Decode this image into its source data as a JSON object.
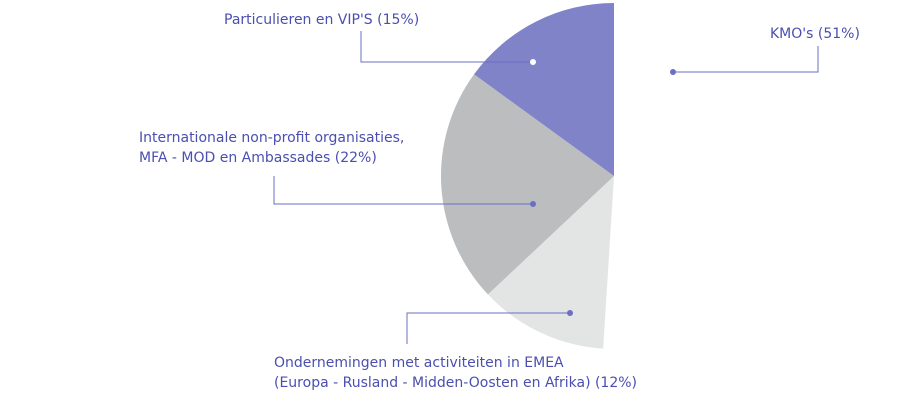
{
  "chart_data": {
    "type": "pie",
    "title": "",
    "slices": [
      {
        "key": "kmo",
        "label_lines": [
          "KMO's (51%)"
        ],
        "value": 51,
        "color": "#ffffff",
        "label_color": "#4a4fb0"
      },
      {
        "key": "emea",
        "label_lines": [
          "Ondernemingen met activiteiten in EMEA",
          "(Europa - Rusland - Midden-Oosten en Afrika) (12%)"
        ],
        "value": 12,
        "color": "#e3e4e4",
        "label_color": "#4a4fb0"
      },
      {
        "key": "ngo",
        "label_lines": [
          "Internationale non-profit organisaties,",
          "MFA - MOD en Ambassades (22%)"
        ],
        "value": 22,
        "color": "#bcbdbe",
        "label_color": "#4a4fb0"
      },
      {
        "key": "vip",
        "label_lines": [
          "Particulieren en VIP'S (15%)"
        ],
        "value": 15,
        "color": "#8083c8",
        "label_color": "#4a4fb0"
      }
    ],
    "start_angle_deg": 0,
    "direction": "clockwise",
    "leader_line_color": "#6a6fc2",
    "legend": "none"
  }
}
